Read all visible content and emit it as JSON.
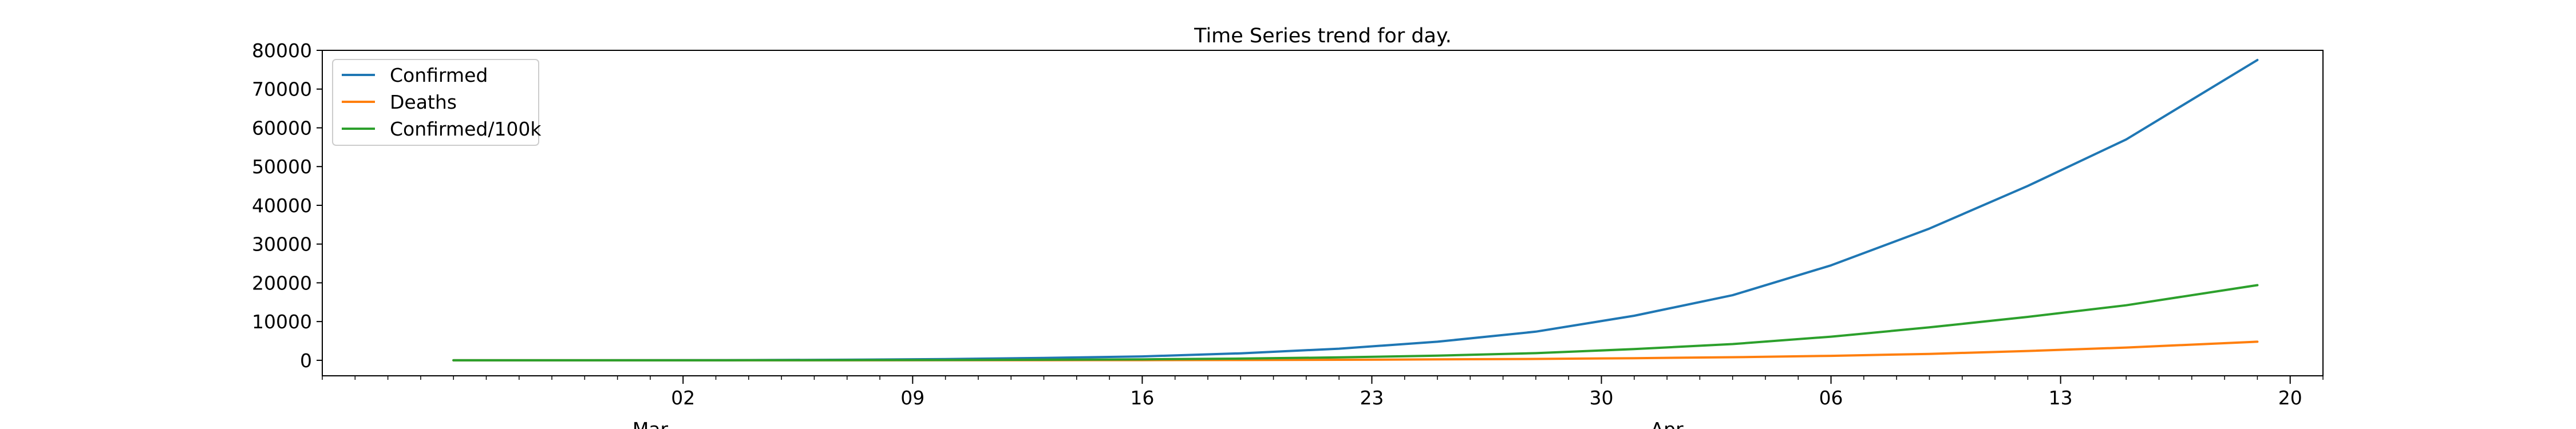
{
  "chart_data": {
    "type": "line",
    "title": "Time Series trend for day.",
    "xlabel": "",
    "ylabel": "",
    "x_axis": {
      "type": "date",
      "range": [
        "2020-02-20",
        "2020-04-21"
      ],
      "major_ticks": [
        {
          "date": "2020-03-02",
          "label": "02"
        },
        {
          "date": "2020-03-09",
          "label": "09"
        },
        {
          "date": "2020-03-16",
          "label": "16"
        },
        {
          "date": "2020-03-23",
          "label": "23"
        },
        {
          "date": "2020-03-30",
          "label": "30"
        },
        {
          "date": "2020-04-06",
          "label": "06"
        },
        {
          "date": "2020-04-13",
          "label": "13"
        },
        {
          "date": "2020-04-20",
          "label": "20"
        }
      ],
      "month_labels": [
        {
          "date": "2020-03-01",
          "label": "Mar"
        },
        {
          "date": "2020-04-01",
          "label": "Apr"
        }
      ]
    },
    "y_axis": {
      "range": [
        -4000,
        80000
      ],
      "ticks": [
        0,
        10000,
        20000,
        30000,
        40000,
        50000,
        60000,
        70000,
        80000
      ],
      "tick_labels": [
        "0",
        "10000",
        "20000",
        "30000",
        "40000",
        "50000",
        "60000",
        "70000",
        "80000"
      ]
    },
    "grid": false,
    "legend_placement": "top-left",
    "x": [
      "2020-02-24",
      "2020-02-27",
      "2020-03-01",
      "2020-03-04",
      "2020-03-07",
      "2020-03-10",
      "2020-03-13",
      "2020-03-16",
      "2020-03-19",
      "2020-03-22",
      "2020-03-25",
      "2020-03-28",
      "2020-03-31",
      "2020-04-03",
      "2020-04-06",
      "2020-04-09",
      "2020-04-12",
      "2020-04-15",
      "2020-04-19"
    ],
    "series": [
      {
        "name": "Confirmed",
        "color": "#1f77b4",
        "values": [
          0,
          5,
          20,
          60,
          150,
          320,
          600,
          1000,
          1800,
          3000,
          4800,
          7400,
          11500,
          16800,
          24500,
          34000,
          45000,
          57000,
          77500
        ]
      },
      {
        "name": "Deaths",
        "color": "#ff7f0e",
        "values": [
          0,
          0,
          1,
          3,
          6,
          12,
          25,
          45,
          80,
          140,
          230,
          360,
          550,
          800,
          1150,
          1650,
          2400,
          3300,
          4800
        ]
      },
      {
        "name": "Confirmed/100k",
        "color": "#2ca02c",
        "values": [
          0,
          2,
          6,
          15,
          38,
          80,
          150,
          250,
          450,
          750,
          1200,
          1850,
          2900,
          4200,
          6100,
          8500,
          11200,
          14200,
          19400
        ]
      }
    ]
  }
}
